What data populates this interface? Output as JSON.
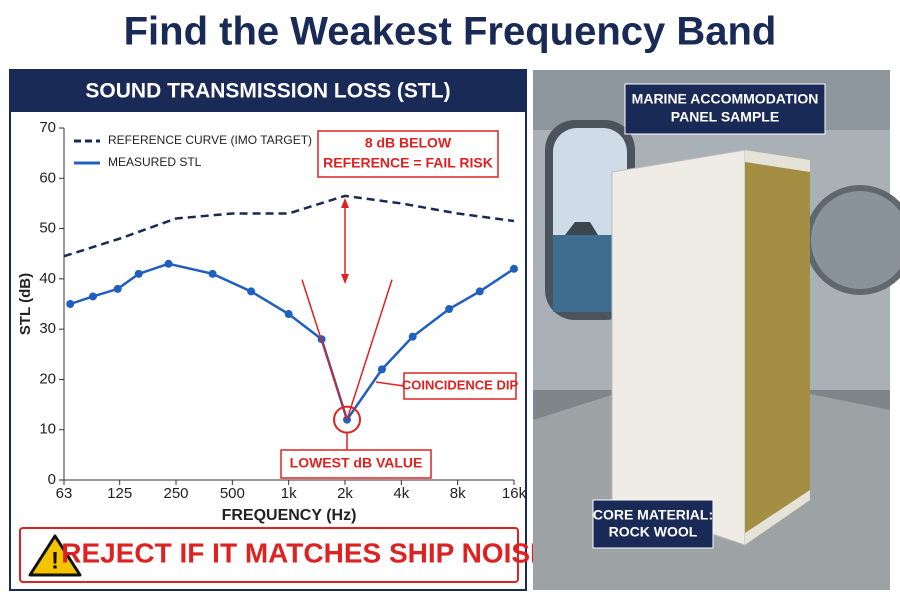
{
  "title": "Find the Weakest Frequency Band",
  "chart_data": {
    "type": "line",
    "title": "SOUND TRANSMISSION LOSS (STL)",
    "x_label": "FREQUENCY (Hz)",
    "y_label": "STL (dB)",
    "log_x": true,
    "xlim": [
      63,
      16000
    ],
    "xticks": [
      63,
      125,
      250,
      500,
      {
        "value": 1000,
        "label": "1k"
      },
      {
        "value": 2000,
        "label": "2k"
      },
      {
        "value": 4000,
        "label": "4k"
      },
      {
        "value": 8000,
        "label": "8k"
      },
      {
        "value": 16000,
        "label": "16k"
      }
    ],
    "ylim": [
      0,
      70
    ],
    "yticks": [
      0,
      10,
      20,
      30,
      40,
      50,
      60,
      70
    ],
    "legend": "top-left",
    "series": [
      {
        "name": "REFERENCE CURVE (IMO TARGET)",
        "color": "#1a2a57",
        "dashed": true,
        "x": [
          63,
          125,
          250,
          500,
          1000,
          2000,
          4000,
          8000,
          16000
        ],
        "values": [
          44.5,
          48,
          52,
          53,
          53,
          56.5,
          55,
          53,
          51.5
        ]
      },
      {
        "name": "MEASURED STL",
        "color": "#1f5fbf",
        "dashed": false,
        "markers": true,
        "x": [
          68,
          90,
          122,
          158,
          228,
          392,
          630,
          1000,
          1500,
          2050,
          3150,
          4600,
          7200,
          10500,
          16000
        ],
        "values": [
          35,
          36.5,
          38,
          41,
          43,
          41,
          37.5,
          33,
          28,
          12,
          22,
          28.5,
          34,
          37.5,
          42
        ]
      }
    ],
    "annotations": {
      "fail_risk": [
        "8 dB BELOW",
        "REFERENCE = FAIL RISK"
      ],
      "coincidence": "COINCIDENCE DIP",
      "lowest": "LOWEST dB VALUE"
    }
  },
  "warning": "REJECT IF IT MATCHES SHIP NOISE",
  "photo": {
    "panel_label": [
      "MARINE ACCOMMODATION",
      "PANEL SAMPLE"
    ],
    "core_label": [
      "CORE MATERIAL:",
      "ROCK WOOL"
    ]
  }
}
